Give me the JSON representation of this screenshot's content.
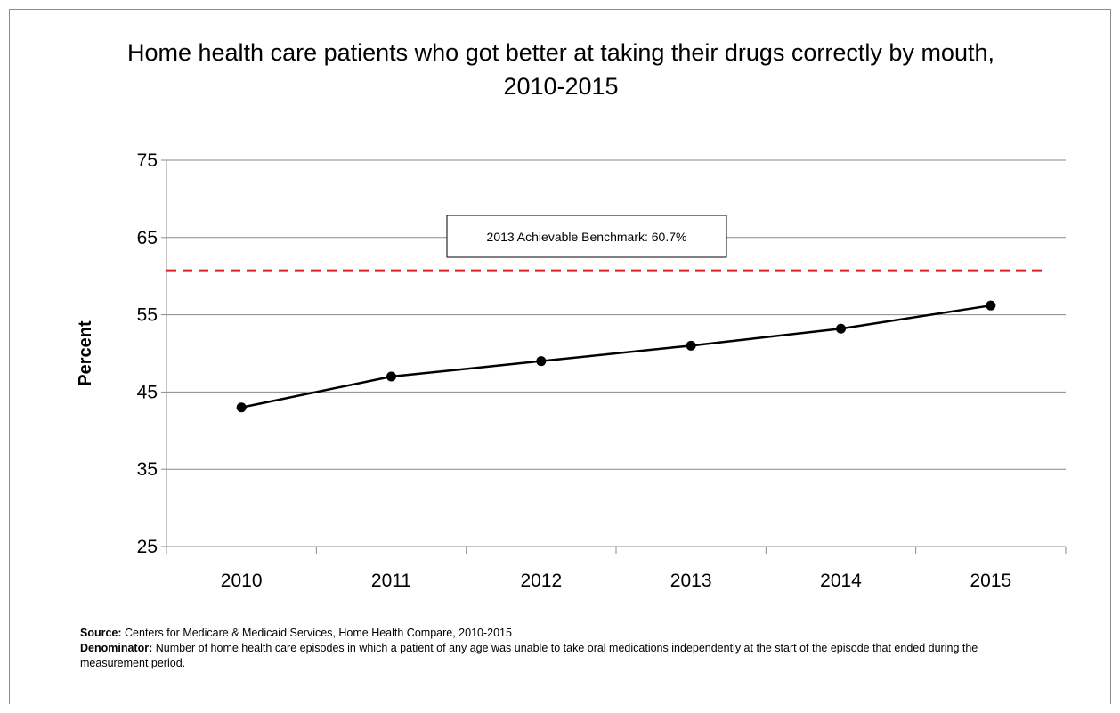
{
  "chart_data": {
    "type": "line",
    "title": "Home health care patients who got better at taking their drugs correctly by mouth, 2010-2015",
    "xlabel": "",
    "ylabel": "Percent",
    "categories": [
      "2010",
      "2011",
      "2012",
      "2013",
      "2014",
      "2015"
    ],
    "series": [
      {
        "values": [
          43.0,
          47.0,
          49.0,
          51.0,
          53.2,
          56.2
        ],
        "color": "#000000"
      }
    ],
    "ylim": [
      25,
      75
    ],
    "yticks": [
      25,
      35,
      45,
      55,
      65,
      75
    ],
    "grid": true,
    "benchmark": {
      "label": "2013 Achievable Benchmark: 60.7%",
      "value": 60.7,
      "color": "#e02020"
    }
  },
  "notes": {
    "source_label": "Source:",
    "source_text": " Centers for Medicare & Medicaid Services, Home Health Compare, 2010-2015",
    "denominator_label": "Denominator:",
    "denominator_text": " Number of home health care episodes in which a patient of any age was unable to take oral medications independently at the start of the episode that ended during the measurement period."
  }
}
